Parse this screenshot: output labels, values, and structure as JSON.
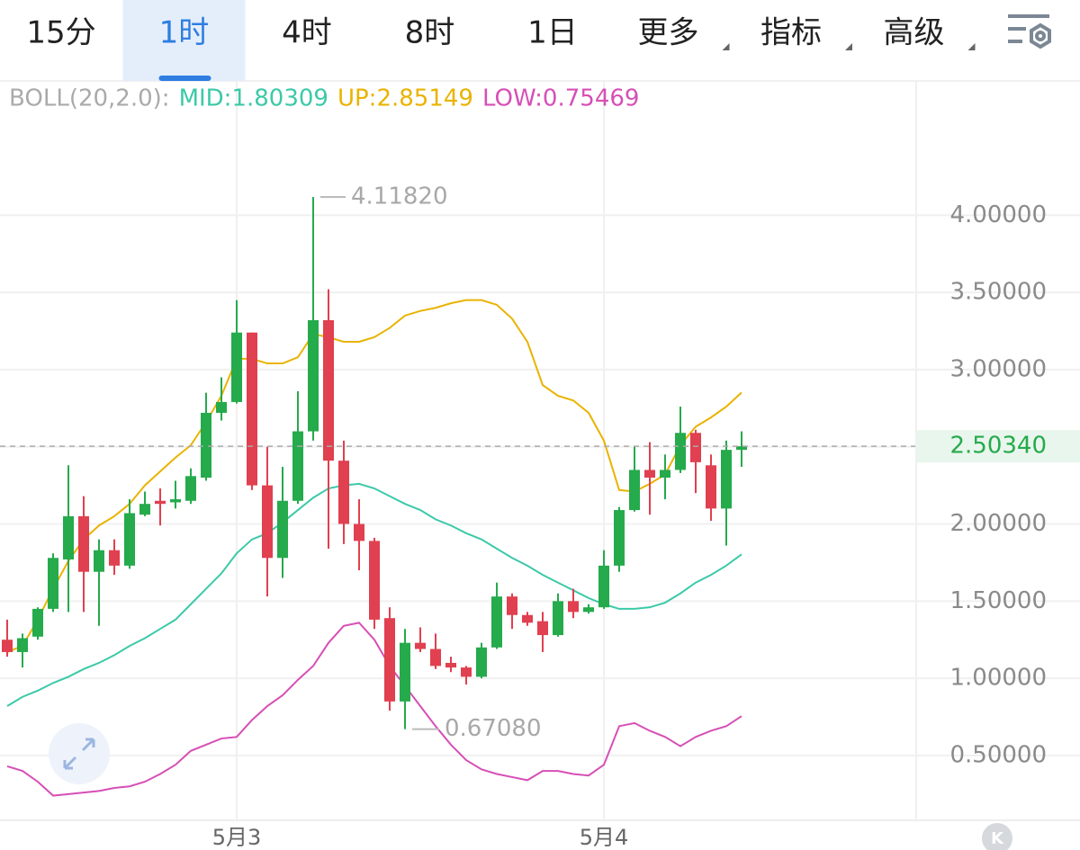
{
  "tabs": [
    "15分",
    "1时",
    "4时",
    "8时",
    "1日",
    "更多",
    "指标",
    "高级"
  ],
  "active_tab": "1时",
  "chart_data": {
    "type": "candlestick",
    "indicator": "BOLL(20,2.0):",
    "categories": [
      null,
      null,
      null,
      null,
      null,
      null,
      null,
      null,
      null,
      null,
      null,
      null,
      null,
      null,
      null,
      "5月3",
      null,
      null,
      null,
      null,
      null,
      null,
      null,
      null,
      null,
      null,
      null,
      null,
      null,
      null,
      null,
      null,
      null,
      null,
      null,
      null,
      null,
      null,
      null,
      "5月4",
      null,
      null,
      null,
      null,
      null,
      null,
      null,
      null,
      null
    ],
    "open": [
      1.25,
      1.17,
      1.27,
      1.45,
      1.77,
      2.05,
      1.69,
      1.83,
      1.73,
      2.06,
      2.15,
      2.14,
      2.15,
      2.3,
      2.72,
      2.79,
      3.24,
      2.25,
      1.78,
      2.15,
      2.6,
      3.32,
      2.41,
      2.0,
      1.89,
      1.39,
      0.85,
      1.23,
      1.19,
      1.1,
      1.07,
      1.01,
      1.2,
      1.53,
      1.41,
      1.37,
      1.28,
      1.5,
      1.43,
      1.46,
      1.73,
      2.09,
      2.35,
      2.3,
      2.35,
      2.59,
      2.38,
      2.1,
      2.48
    ],
    "high": [
      1.38,
      1.29,
      1.46,
      1.81,
      2.38,
      2.18,
      1.9,
      1.9,
      2.16,
      2.21,
      2.23,
      2.28,
      2.36,
      2.85,
      2.95,
      3.45,
      3.24,
      2.5,
      2.37,
      2.86,
      4.1182,
      3.52,
      2.54,
      2.16,
      1.91,
      1.46,
      1.32,
      1.33,
      1.29,
      1.14,
      1.08,
      1.23,
      1.62,
      1.55,
      1.43,
      1.43,
      1.55,
      1.58,
      1.48,
      1.83,
      2.11,
      2.5,
      2.53,
      2.45,
      2.76,
      2.61,
      2.45,
      2.54,
      2.6
    ],
    "low": [
      1.14,
      1.07,
      1.25,
      1.43,
      1.43,
      1.43,
      1.34,
      1.67,
      1.71,
      2.05,
      1.99,
      2.1,
      2.13,
      2.28,
      2.67,
      2.78,
      2.22,
      1.53,
      1.65,
      2.13,
      2.54,
      1.84,
      1.87,
      1.7,
      1.32,
      0.79,
      0.6708,
      1.17,
      1.06,
      1.04,
      0.96,
      1.0,
      1.19,
      1.32,
      1.34,
      1.17,
      1.27,
      1.39,
      1.42,
      1.45,
      1.69,
      2.08,
      2.06,
      2.16,
      2.33,
      2.2,
      2.02,
      1.86,
      2.37
    ],
    "close": [
      1.17,
      1.26,
      1.45,
      1.78,
      2.05,
      1.69,
      1.83,
      1.73,
      2.07,
      2.13,
      2.13,
      2.16,
      2.31,
      2.72,
      2.79,
      3.24,
      2.25,
      1.78,
      2.15,
      2.6,
      3.32,
      2.41,
      2.0,
      1.89,
      1.38,
      0.85,
      1.23,
      1.19,
      1.08,
      1.07,
      1.01,
      1.2,
      1.53,
      1.41,
      1.36,
      1.28,
      1.5,
      1.43,
      1.46,
      1.73,
      2.09,
      2.35,
      2.3,
      2.35,
      2.59,
      2.4,
      2.1,
      2.48,
      2.5034
    ],
    "up_color": "#25aa4c",
    "down_color": "#e0404f",
    "series": [
      {
        "name": "MID:1.80309",
        "color": "#3cc9a8",
        "values": [
          0.82,
          0.88,
          0.92,
          0.97,
          1.01,
          1.06,
          1.1,
          1.15,
          1.21,
          1.26,
          1.32,
          1.38,
          1.48,
          1.58,
          1.68,
          1.81,
          1.9,
          1.94,
          2.01,
          2.09,
          2.17,
          2.23,
          2.25,
          2.26,
          2.23,
          2.18,
          2.13,
          2.09,
          2.03,
          1.99,
          1.94,
          1.9,
          1.84,
          1.78,
          1.73,
          1.67,
          1.62,
          1.57,
          1.52,
          1.48,
          1.45,
          1.45,
          1.46,
          1.49,
          1.55,
          1.62,
          1.67,
          1.73,
          1.80309
        ]
      },
      {
        "name": "UP:2.85149",
        "color": "#e9b300",
        "values": [
          1.17,
          1.21,
          1.38,
          1.58,
          1.76,
          1.9,
          1.99,
          2.05,
          2.13,
          2.25,
          2.34,
          2.43,
          2.51,
          2.66,
          2.83,
          3.07,
          3.07,
          3.04,
          3.04,
          3.08,
          3.23,
          3.21,
          3.18,
          3.18,
          3.21,
          3.27,
          3.35,
          3.38,
          3.4,
          3.43,
          3.45,
          3.45,
          3.42,
          3.33,
          3.18,
          2.9,
          2.83,
          2.8,
          2.72,
          2.54,
          2.22,
          2.21,
          2.26,
          2.32,
          2.51,
          2.63,
          2.69,
          2.76,
          2.85149
        ]
      },
      {
        "name": "LOW:0.75469",
        "color": "#d64fb6",
        "values": [
          0.43,
          0.4,
          0.33,
          0.24,
          0.25,
          0.26,
          0.27,
          0.29,
          0.3,
          0.33,
          0.38,
          0.44,
          0.53,
          0.57,
          0.61,
          0.62,
          0.73,
          0.82,
          0.89,
          0.99,
          1.08,
          1.23,
          1.34,
          1.36,
          1.25,
          1.08,
          0.95,
          0.82,
          0.69,
          0.57,
          0.47,
          0.41,
          0.38,
          0.36,
          0.34,
          0.4,
          0.4,
          0.38,
          0.37,
          0.44,
          0.69,
          0.71,
          0.66,
          0.62,
          0.56,
          0.62,
          0.66,
          0.69,
          0.75469
        ]
      }
    ],
    "high_label": "4.11820",
    "low_label": "0.67080",
    "last_price": {
      "value": 2.5034,
      "label": "2.50340"
    },
    "ylim": [
      0.08,
      4.87
    ],
    "yticks": [
      {
        "value": 0.5,
        "label": "0.50000"
      },
      {
        "value": 1,
        "label": "1.00000"
      },
      {
        "value": 1.5,
        "label": "1.50000"
      },
      {
        "value": 2,
        "label": "2.00000"
      },
      {
        "value": 2.5,
        "label": "2.50000"
      },
      {
        "value": 3,
        "label": "3.00000"
      },
      {
        "value": 3.5,
        "label": "3.50000"
      },
      {
        "value": 4,
        "label": "4.00000"
      }
    ],
    "grid": true
  }
}
